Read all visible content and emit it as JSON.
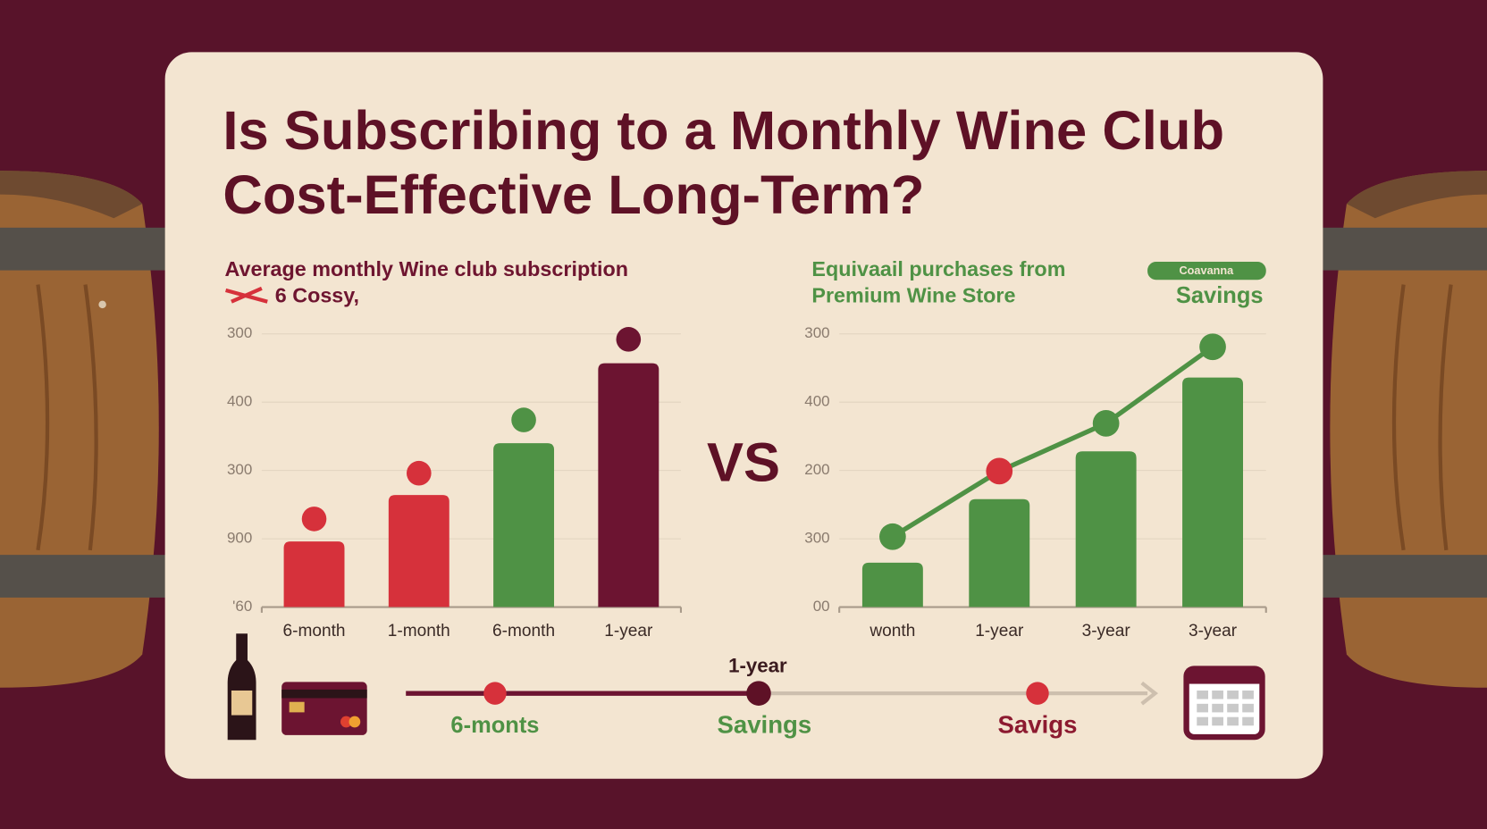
{
  "title": [
    "Is Subscribing to a Monthly Wine Club",
    "Cost-Effective Long-Term?"
  ],
  "vs": "VS",
  "timeline": {
    "top_label": "1-year",
    "labels": [
      "6-monts",
      "Savings",
      "Savigs"
    ]
  },
  "chart_data": [
    {
      "type": "bar",
      "subtitle": [
        "Average monthly Wine club subscription",
        "6 Cossy,"
      ],
      "categories": [
        "6-month",
        "1-month",
        "6-month",
        "1-year"
      ],
      "ylim": [
        0,
        4
      ],
      "yticks": [
        {
          "value": 0,
          "label": "'60"
        },
        {
          "value": 1,
          "label": "900"
        },
        {
          "value": 2,
          "label": "300"
        },
        {
          "value": 3,
          "label": "400"
        },
        {
          "value": 4,
          "label": "300"
        }
      ],
      "grid": true,
      "series": [
        {
          "type": "bar",
          "colors": [
            "#d6313b",
            "#d6313b",
            "#4f9245",
            "#6c1431"
          ],
          "values": [
            0.96,
            1.64,
            2.4,
            3.57
          ]
        },
        {
          "type": "scatter",
          "colors": [
            "#d6313b",
            "#d6313b",
            "#4f9245",
            "#6c1431"
          ],
          "values": [
            1.29,
            1.96,
            2.74,
            3.92
          ]
        }
      ]
    },
    {
      "type": "bar",
      "subtitle": [
        "Equivaail purchases from",
        "Premium Wine Store"
      ],
      "badge": "Coavanna",
      "annotation": "Savings",
      "categories": [
        "wonth",
        "1-year",
        "3-year",
        "3-year"
      ],
      "ylim": [
        0,
        4
      ],
      "yticks": [
        {
          "value": 0,
          "label": "00"
        },
        {
          "value": 1,
          "label": "300"
        },
        {
          "value": 2,
          "label": "200"
        },
        {
          "value": 3,
          "label": "400"
        },
        {
          "value": 4,
          "label": "300"
        }
      ],
      "grid": true,
      "series": [
        {
          "type": "bar",
          "colors": [
            "#4f9245",
            "#4f9245",
            "#4f9245",
            "#4f9245"
          ],
          "values": [
            0.65,
            1.58,
            2.28,
            3.36
          ]
        },
        {
          "type": "line",
          "color": "#4f9245",
          "colors": [
            "#4f9245",
            "#d6313b",
            "#4f9245",
            "#4f9245"
          ],
          "values": [
            1.03,
            1.99,
            2.69,
            3.81
          ]
        }
      ]
    }
  ]
}
